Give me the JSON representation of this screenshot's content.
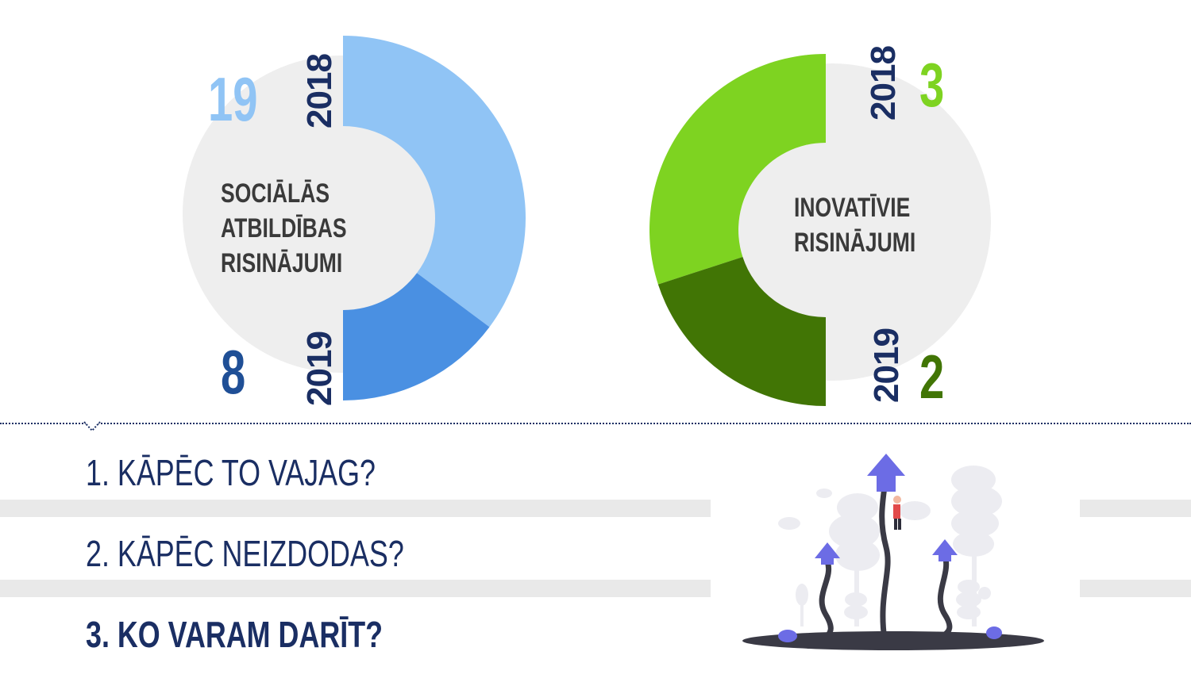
{
  "chart_data": [
    {
      "type": "pie",
      "title": "SOCIĀLĀS ATBILDĪBAS RISINĀJUMI",
      "title_lines": [
        "SOCIĀLĀS",
        "ATBILDĪBAS",
        "RISINĀJUMI"
      ],
      "categories": [
        "2018",
        "2019"
      ],
      "values": [
        19,
        8
      ],
      "colors": [
        "#90c4f5",
        "#4a90e2"
      ],
      "number_colors": [
        "#90c4f5",
        "#1f4f96"
      ]
    },
    {
      "type": "pie",
      "title": "INOVATĪVIE RISINĀJUMI",
      "title_lines": [
        "INOVATĪVIE",
        "RISINĀJUMI"
      ],
      "categories": [
        "2018",
        "2019"
      ],
      "values": [
        3,
        2
      ],
      "colors": [
        "#7ed321",
        "#417505"
      ],
      "number_colors": [
        "#7ed321",
        "#417505"
      ]
    }
  ],
  "menu": {
    "items": [
      {
        "label": "1. KĀPĒC TO VAJAG?"
      },
      {
        "label": "2. KĀPĒC NEIZDODAS?"
      },
      {
        "label": "3. KO VARAM DARĪT?"
      }
    ]
  },
  "colors": {
    "navy": "#1a2e63",
    "disc_gray": "#eeeeee",
    "band_gray": "#e9e9e9",
    "arrow_purple": "#6c6ce5"
  },
  "illustration": {
    "icon": "growth-arrows-illustration"
  }
}
